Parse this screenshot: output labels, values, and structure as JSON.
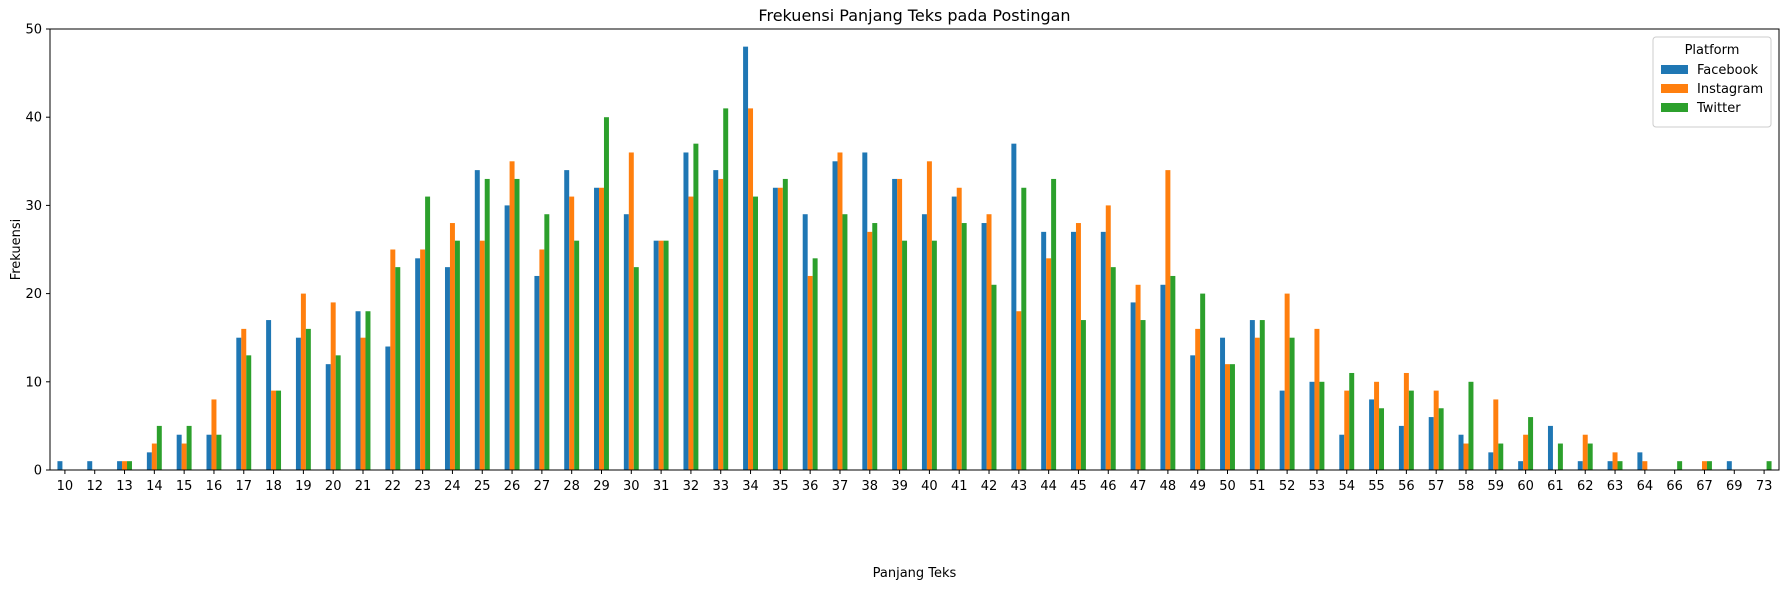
{
  "chart_data": {
    "type": "bar",
    "title": "Frekuensi Panjang Teks pada Postingan",
    "xlabel": "Panjang Teks",
    "ylabel": "Frekuensi",
    "ylim": [
      0,
      50
    ],
    "yticks": [
      0,
      10,
      20,
      30,
      40,
      50
    ],
    "grid": false,
    "legend": {
      "title": "Platform",
      "position": "top-right"
    },
    "categories": [
      "10",
      "12",
      "13",
      "14",
      "15",
      "16",
      "17",
      "18",
      "19",
      "20",
      "21",
      "22",
      "23",
      "24",
      "25",
      "26",
      "27",
      "28",
      "29",
      "30",
      "31",
      "32",
      "33",
      "34",
      "35",
      "36",
      "37",
      "38",
      "39",
      "40",
      "41",
      "42",
      "43",
      "44",
      "45",
      "46",
      "47",
      "48",
      "49",
      "50",
      "51",
      "52",
      "53",
      "54",
      "55",
      "56",
      "57",
      "58",
      "59",
      "60",
      "61",
      "62",
      "63",
      "64",
      "66",
      "67",
      "69",
      "73"
    ],
    "series": [
      {
        "name": "Facebook",
        "color": "#1f77b4",
        "values": [
          1,
          1,
          1,
          2,
          4,
          4,
          15,
          17,
          15,
          12,
          18,
          14,
          24,
          23,
          34,
          30,
          22,
          34,
          32,
          29,
          26,
          36,
          34,
          48,
          32,
          29,
          35,
          36,
          33,
          29,
          31,
          28,
          37,
          27,
          27,
          27,
          19,
          21,
          13,
          15,
          17,
          9,
          10,
          4,
          8,
          5,
          6,
          4,
          2,
          1,
          5,
          1,
          1,
          2,
          0,
          0,
          1,
          0
        ]
      },
      {
        "name": "Instagram",
        "color": "#ff7f0e",
        "values": [
          0,
          0,
          1,
          3,
          3,
          8,
          16,
          9,
          20,
          19,
          15,
          25,
          25,
          28,
          26,
          35,
          25,
          31,
          32,
          36,
          26,
          31,
          33,
          41,
          32,
          22,
          36,
          27,
          33,
          35,
          32,
          29,
          18,
          24,
          28,
          30,
          21,
          34,
          16,
          12,
          15,
          20,
          16,
          9,
          10,
          11,
          9,
          3,
          8,
          4,
          0,
          4,
          2,
          1,
          0,
          1,
          0,
          0
        ]
      },
      {
        "name": "Twitter",
        "color": "#2ca02c",
        "values": [
          0,
          0,
          1,
          5,
          5,
          4,
          13,
          9,
          16,
          13,
          18,
          23,
          31,
          26,
          33,
          33,
          29,
          26,
          40,
          23,
          26,
          37,
          41,
          31,
          33,
          24,
          29,
          28,
          26,
          26,
          28,
          21,
          32,
          33,
          17,
          23,
          17,
          22,
          20,
          12,
          17,
          15,
          10,
          11,
          7,
          9,
          7,
          10,
          3,
          6,
          3,
          3,
          1,
          0,
          1,
          1,
          0,
          1
        ]
      }
    ]
  }
}
